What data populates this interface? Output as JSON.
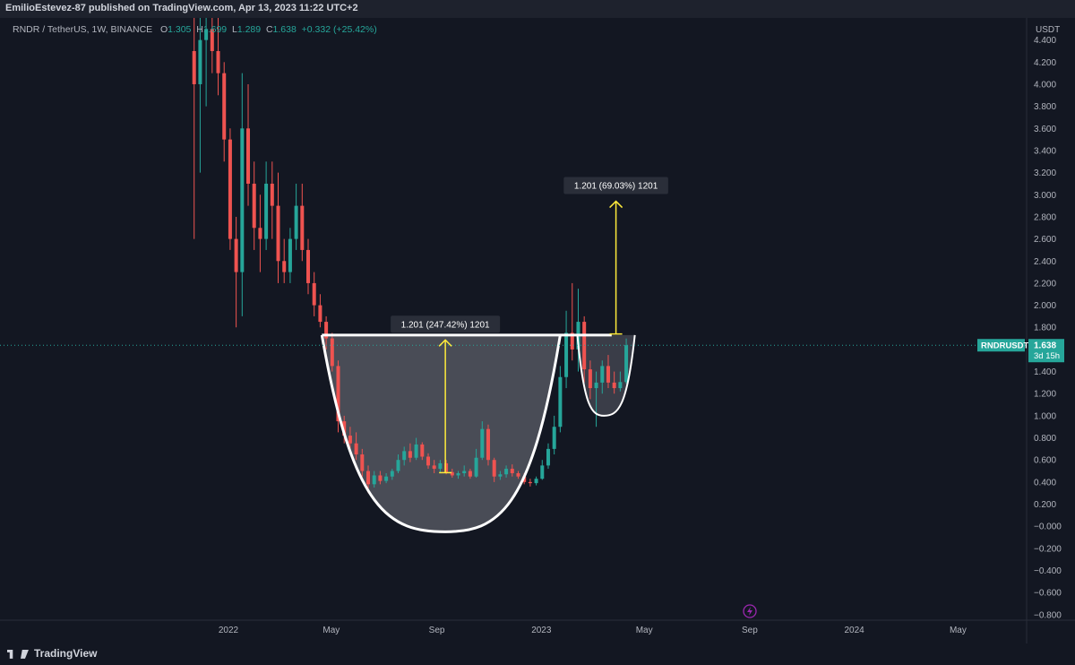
{
  "publisher": "EmilioEstevez-87 published on TradingView.com, Apr 13, 2023 11:22 UTC+2",
  "legend": {
    "symbol": "RNDR / TetherUS, 1W, BINANCE",
    "o_label": "O",
    "o": "1.305",
    "h_label": "H",
    "h": "1.699",
    "l_label": "L",
    "l": "1.289",
    "c_label": "C",
    "c": "1.638",
    "change": "+0.332 (+25.42%)"
  },
  "brand": "TradingView",
  "colors": {
    "up": "#26a69a",
    "down": "#ef5350",
    "background": "#131722",
    "measure": "#ffeb3b",
    "price_line": "#26a69a"
  },
  "chart_data": {
    "type": "candlestick",
    "symbol": "RNDRUSDT",
    "timeframe": "1W",
    "y_axis": {
      "unit": "USDT",
      "ticks": [
        4.4,
        4.2,
        4.0,
        3.8,
        3.6,
        3.4,
        3.2,
        3.0,
        2.8,
        2.6,
        2.4,
        2.2,
        2.0,
        1.8,
        1.4,
        1.2,
        1.0,
        0.8,
        0.6,
        0.4,
        0.2,
        -0.0,
        -0.2,
        -0.4,
        -0.6,
        -0.8
      ],
      "tick_labels": [
        "4.400",
        "4.200",
        "4.000",
        "3.800",
        "3.600",
        "3.400",
        "3.200",
        "3.000",
        "2.800",
        "2.600",
        "2.400",
        "2.200",
        "2.000",
        "1.800",
        "1.400",
        "1.200",
        "1.000",
        "0.800",
        "0.600",
        "0.400",
        "0.200",
        "−0.000",
        "−0.200",
        "−0.400",
        "−0.600",
        "−0.800"
      ],
      "range": [
        -0.85,
        4.6
      ]
    },
    "x_axis": {
      "ticks": [
        {
          "label": "2022",
          "date": "2022-01-01"
        },
        {
          "label": "May",
          "date": "2022-05-01"
        },
        {
          "label": "Sep",
          "date": "2022-09-01"
        },
        {
          "label": "2023",
          "date": "2023-01-01"
        },
        {
          "label": "May",
          "date": "2023-05-01"
        },
        {
          "label": "Sep",
          "date": "2023-09-01"
        },
        {
          "label": "2024",
          "date": "2024-01-01"
        },
        {
          "label": "May",
          "date": "2024-05-01"
        }
      ],
      "range": [
        "2021-04-20",
        "2024-07-20"
      ]
    },
    "current_price": {
      "label": "RNDRUSDT",
      "value": 1.638,
      "value_label": "1.638",
      "countdown": "3d 15h"
    },
    "candles": [
      {
        "date": "2021-11-22",
        "o": 4.3,
        "h": 4.6,
        "l": 2.6,
        "c": 4.0
      },
      {
        "date": "2021-11-29",
        "o": 4.0,
        "h": 4.6,
        "l": 3.2,
        "c": 4.4
      },
      {
        "date": "2021-12-06",
        "o": 4.4,
        "h": 4.6,
        "l": 3.8,
        "c": 4.5
      },
      {
        "date": "2021-12-13",
        "o": 4.5,
        "h": 4.6,
        "l": 4.1,
        "c": 4.3
      },
      {
        "date": "2021-12-20",
        "o": 4.3,
        "h": 4.6,
        "l": 3.9,
        "c": 4.1
      },
      {
        "date": "2021-12-27",
        "o": 4.1,
        "h": 4.2,
        "l": 3.3,
        "c": 3.5
      },
      {
        "date": "2022-01-03",
        "o": 3.5,
        "h": 3.6,
        "l": 2.5,
        "c": 2.6
      },
      {
        "date": "2022-01-10",
        "o": 2.6,
        "h": 2.8,
        "l": 1.8,
        "c": 2.3
      },
      {
        "date": "2022-01-17",
        "o": 2.3,
        "h": 4.1,
        "l": 1.9,
        "c": 3.6
      },
      {
        "date": "2022-01-24",
        "o": 3.6,
        "h": 4.0,
        "l": 2.9,
        "c": 3.1
      },
      {
        "date": "2022-01-31",
        "o": 3.1,
        "h": 3.3,
        "l": 2.5,
        "c": 2.7
      },
      {
        "date": "2022-02-07",
        "o": 2.7,
        "h": 3.0,
        "l": 2.3,
        "c": 2.6
      },
      {
        "date": "2022-02-14",
        "o": 2.6,
        "h": 3.3,
        "l": 2.5,
        "c": 3.1
      },
      {
        "date": "2022-02-21",
        "o": 3.1,
        "h": 3.3,
        "l": 2.6,
        "c": 2.9
      },
      {
        "date": "2022-02-28",
        "o": 2.9,
        "h": 3.2,
        "l": 2.2,
        "c": 2.4
      },
      {
        "date": "2022-03-07",
        "o": 2.4,
        "h": 2.6,
        "l": 2.2,
        "c": 2.3
      },
      {
        "date": "2022-03-14",
        "o": 2.3,
        "h": 2.7,
        "l": 2.2,
        "c": 2.6
      },
      {
        "date": "2022-03-21",
        "o": 2.6,
        "h": 3.1,
        "l": 2.5,
        "c": 2.9
      },
      {
        "date": "2022-03-28",
        "o": 2.9,
        "h": 3.1,
        "l": 2.4,
        "c": 2.5
      },
      {
        "date": "2022-04-04",
        "o": 2.5,
        "h": 2.6,
        "l": 2.1,
        "c": 2.2
      },
      {
        "date": "2022-04-11",
        "o": 2.2,
        "h": 2.3,
        "l": 1.9,
        "c": 2.0
      },
      {
        "date": "2022-04-18",
        "o": 2.0,
        "h": 2.1,
        "l": 1.8,
        "c": 1.85
      },
      {
        "date": "2022-04-25",
        "o": 1.85,
        "h": 1.9,
        "l": 1.6,
        "c": 1.7
      },
      {
        "date": "2022-05-02",
        "o": 1.7,
        "h": 1.75,
        "l": 1.4,
        "c": 1.45
      },
      {
        "date": "2022-05-09",
        "o": 1.45,
        "h": 1.5,
        "l": 0.85,
        "c": 0.95
      },
      {
        "date": "2022-05-16",
        "o": 0.95,
        "h": 1.0,
        "l": 0.75,
        "c": 0.82
      },
      {
        "date": "2022-05-23",
        "o": 0.82,
        "h": 0.9,
        "l": 0.7,
        "c": 0.75
      },
      {
        "date": "2022-05-30",
        "o": 0.75,
        "h": 0.85,
        "l": 0.6,
        "c": 0.65
      },
      {
        "date": "2022-06-06",
        "o": 0.65,
        "h": 0.7,
        "l": 0.45,
        "c": 0.5
      },
      {
        "date": "2022-06-13",
        "o": 0.5,
        "h": 0.55,
        "l": 0.3,
        "c": 0.38
      },
      {
        "date": "2022-06-20",
        "o": 0.38,
        "h": 0.5,
        "l": 0.35,
        "c": 0.46
      },
      {
        "date": "2022-06-27",
        "o": 0.46,
        "h": 0.5,
        "l": 0.38,
        "c": 0.41
      },
      {
        "date": "2022-07-04",
        "o": 0.41,
        "h": 0.48,
        "l": 0.39,
        "c": 0.45
      },
      {
        "date": "2022-07-11",
        "o": 0.45,
        "h": 0.52,
        "l": 0.42,
        "c": 0.5
      },
      {
        "date": "2022-07-18",
        "o": 0.5,
        "h": 0.65,
        "l": 0.48,
        "c": 0.6
      },
      {
        "date": "2022-07-25",
        "o": 0.6,
        "h": 0.72,
        "l": 0.55,
        "c": 0.68
      },
      {
        "date": "2022-08-01",
        "o": 0.68,
        "h": 0.75,
        "l": 0.58,
        "c": 0.62
      },
      {
        "date": "2022-08-08",
        "o": 0.62,
        "h": 0.8,
        "l": 0.6,
        "c": 0.74
      },
      {
        "date": "2022-08-15",
        "o": 0.74,
        "h": 0.76,
        "l": 0.6,
        "c": 0.63
      },
      {
        "date": "2022-08-22",
        "o": 0.63,
        "h": 0.66,
        "l": 0.52,
        "c": 0.55
      },
      {
        "date": "2022-08-29",
        "o": 0.55,
        "h": 0.6,
        "l": 0.48,
        "c": 0.52
      },
      {
        "date": "2022-09-05",
        "o": 0.52,
        "h": 0.6,
        "l": 0.48,
        "c": 0.57
      },
      {
        "date": "2022-09-12",
        "o": 0.57,
        "h": 0.6,
        "l": 0.47,
        "c": 0.49
      },
      {
        "date": "2022-09-19",
        "o": 0.49,
        "h": 0.52,
        "l": 0.44,
        "c": 0.46
      },
      {
        "date": "2022-09-26",
        "o": 0.46,
        "h": 0.5,
        "l": 0.43,
        "c": 0.48
      },
      {
        "date": "2022-10-03",
        "o": 0.48,
        "h": 0.55,
        "l": 0.45,
        "c": 0.5
      },
      {
        "date": "2022-10-10",
        "o": 0.5,
        "h": 0.52,
        "l": 0.43,
        "c": 0.45
      },
      {
        "date": "2022-10-17",
        "o": 0.45,
        "h": 0.7,
        "l": 0.44,
        "c": 0.62
      },
      {
        "date": "2022-10-24",
        "o": 0.62,
        "h": 0.95,
        "l": 0.6,
        "c": 0.88
      },
      {
        "date": "2022-10-31",
        "o": 0.88,
        "h": 0.92,
        "l": 0.55,
        "c": 0.6
      },
      {
        "date": "2022-11-07",
        "o": 0.6,
        "h": 0.62,
        "l": 0.4,
        "c": 0.45
      },
      {
        "date": "2022-11-14",
        "o": 0.45,
        "h": 0.5,
        "l": 0.42,
        "c": 0.47
      },
      {
        "date": "2022-11-21",
        "o": 0.47,
        "h": 0.55,
        "l": 0.44,
        "c": 0.52
      },
      {
        "date": "2022-11-28",
        "o": 0.52,
        "h": 0.56,
        "l": 0.45,
        "c": 0.48
      },
      {
        "date": "2022-12-05",
        "o": 0.48,
        "h": 0.5,
        "l": 0.43,
        "c": 0.45
      },
      {
        "date": "2022-12-12",
        "o": 0.45,
        "h": 0.48,
        "l": 0.38,
        "c": 0.4
      },
      {
        "date": "2022-12-19",
        "o": 0.4,
        "h": 0.43,
        "l": 0.36,
        "c": 0.39
      },
      {
        "date": "2022-12-26",
        "o": 0.39,
        "h": 0.45,
        "l": 0.37,
        "c": 0.43
      },
      {
        "date": "2023-01-02",
        "o": 0.43,
        "h": 0.6,
        "l": 0.42,
        "c": 0.55
      },
      {
        "date": "2023-01-09",
        "o": 0.55,
        "h": 0.75,
        "l": 0.52,
        "c": 0.7
      },
      {
        "date": "2023-01-16",
        "o": 0.7,
        "h": 1.0,
        "l": 0.65,
        "c": 0.9
      },
      {
        "date": "2023-01-23",
        "o": 0.9,
        "h": 1.45,
        "l": 0.85,
        "c": 1.35
      },
      {
        "date": "2023-01-30",
        "o": 1.35,
        "h": 1.95,
        "l": 1.25,
        "c": 1.75
      },
      {
        "date": "2023-02-06",
        "o": 1.75,
        "h": 2.2,
        "l": 1.5,
        "c": 1.6
      },
      {
        "date": "2023-02-13",
        "o": 1.6,
        "h": 2.15,
        "l": 1.4,
        "c": 1.85
      },
      {
        "date": "2023-02-20",
        "o": 1.85,
        "h": 1.9,
        "l": 1.3,
        "c": 1.42
      },
      {
        "date": "2023-02-27",
        "o": 1.42,
        "h": 1.5,
        "l": 1.15,
        "c": 1.25
      },
      {
        "date": "2023-03-06",
        "o": 1.25,
        "h": 1.4,
        "l": 0.9,
        "c": 1.3
      },
      {
        "date": "2023-03-13",
        "o": 1.3,
        "h": 1.5,
        "l": 1.2,
        "c": 1.45
      },
      {
        "date": "2023-03-20",
        "o": 1.45,
        "h": 1.55,
        "l": 1.25,
        "c": 1.3
      },
      {
        "date": "2023-03-27",
        "o": 1.3,
        "h": 1.4,
        "l": 1.2,
        "c": 1.25
      },
      {
        "date": "2023-04-03",
        "o": 1.25,
        "h": 1.4,
        "l": 1.22,
        "c": 1.305
      },
      {
        "date": "2023-04-10",
        "o": 1.305,
        "h": 1.699,
        "l": 1.289,
        "c": 1.638
      }
    ],
    "drawings": {
      "resistance_line": {
        "value": 1.73,
        "from": "2022-04-20",
        "to": "2023-03-24"
      },
      "cup": {
        "left": [
          "2022-04-20",
          1.73
        ],
        "bottom": [
          "2022-09-11",
          -0.05
        ],
        "right": [
          "2023-01-23",
          1.73
        ]
      },
      "handle": {
        "left": [
          "2023-02-12",
          1.73
        ],
        "bottom": [
          "2023-03-15",
          1.0
        ],
        "right": [
          "2023-04-20",
          1.73
        ]
      },
      "measures": [
        {
          "label": "1.201 (247.42%) 1201",
          "date": "2022-09-11",
          "from": 0.485,
          "to": 1.686
        },
        {
          "label": "1.201 (69.03%) 1201",
          "date": "2023-03-29",
          "from": 1.74,
          "to": 2.941
        }
      ]
    }
  }
}
